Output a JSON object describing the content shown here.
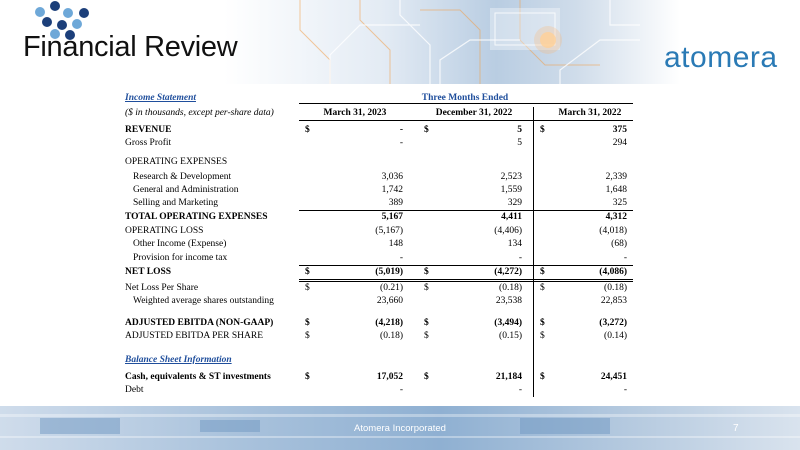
{
  "slide": {
    "title": "Financial Review",
    "logo_text": "atomera",
    "footer": "Atomera Incorporated",
    "page_number": "7"
  },
  "table": {
    "section_title": "Income Statement",
    "units_note": "($ in thousands, except per-share data)",
    "period_header": "Three Months Ended",
    "columns": [
      "March 31, 2023",
      "December 31, 2022",
      "March 31, 2022"
    ],
    "rows": {
      "revenue": {
        "label": "REVENUE",
        "d1": "$",
        "v1": "-",
        "d2": "$",
        "v2": "5",
        "d3": "$",
        "v3": "375"
      },
      "gross_profit": {
        "label": "Gross Profit",
        "v1": "-",
        "v2": "5",
        "v3": "294"
      },
      "opex_header": {
        "label": "OPERATING EXPENSES"
      },
      "rd": {
        "label": "Research & Development",
        "v1": "3,036",
        "v2": "2,523",
        "v3": "2,339"
      },
      "ga": {
        "label": "General and Administration",
        "v1": "1,742",
        "v2": "1,559",
        "v3": "1,648"
      },
      "sm": {
        "label": "Selling and Marketing",
        "v1": "389",
        "v2": "329",
        "v3": "325"
      },
      "total_opex": {
        "label": "TOTAL OPERATING EXPENSES",
        "v1": "5,167",
        "v2": "4,411",
        "v3": "4,312"
      },
      "op_loss": {
        "label": "OPERATING LOSS",
        "v1": "(5,167)",
        "v2": "(4,406)",
        "v3": "(4,018)"
      },
      "other_income": {
        "label": "Other Income (Expense)",
        "v1": "148",
        "v2": "134",
        "v3": "(68)"
      },
      "tax": {
        "label": "Provision for income tax",
        "v1": "-",
        "v2": "-",
        "v3": "-"
      },
      "net_loss": {
        "label": "NET LOSS",
        "d1": "$",
        "v1": "(5,019)",
        "d2": "$",
        "v2": "(4,272)",
        "d3": "$",
        "v3": "(4,086)"
      },
      "nlps": {
        "label": "Net Loss Per Share",
        "d1": "$",
        "v1": "(0.21)",
        "d2": "$",
        "v2": "(0.18)",
        "d3": "$",
        "v3": "(0.18)"
      },
      "wavg": {
        "label": "Weighted average shares outstanding",
        "v1": "23,660",
        "v2": "23,538",
        "v3": "22,853"
      },
      "ebitda": {
        "label": "ADJUSTED EBITDA (NON-GAAP)",
        "d1": "$",
        "v1": "(4,218)",
        "d2": "$",
        "v2": "(3,494)",
        "d3": "$",
        "v3": "(3,272)"
      },
      "ebitda_ps": {
        "label": "ADJUSTED EBITDA PER SHARE",
        "d1": "$",
        "v1": "(0.18)",
        "d2": "$",
        "v2": "(0.15)",
        "d3": "$",
        "v3": "(0.14)"
      },
      "bs_header": {
        "label": "Balance Sheet Information"
      },
      "cash": {
        "label": "Cash, equivalents & ST investments",
        "d1": "$",
        "v1": "17,052",
        "d2": "$",
        "v2": "21,184",
        "d3": "$",
        "v3": "24,451"
      },
      "debt": {
        "label": "Debt",
        "v1": "-",
        "v2": "-",
        "v3": "-"
      }
    }
  },
  "colors": {
    "accent_blue": "#1f4e9c",
    "logo_blue": "#2a7ab5",
    "logo_dots_light": "#6ea8d8",
    "logo_dots_dark": "#1c3f7a"
  }
}
